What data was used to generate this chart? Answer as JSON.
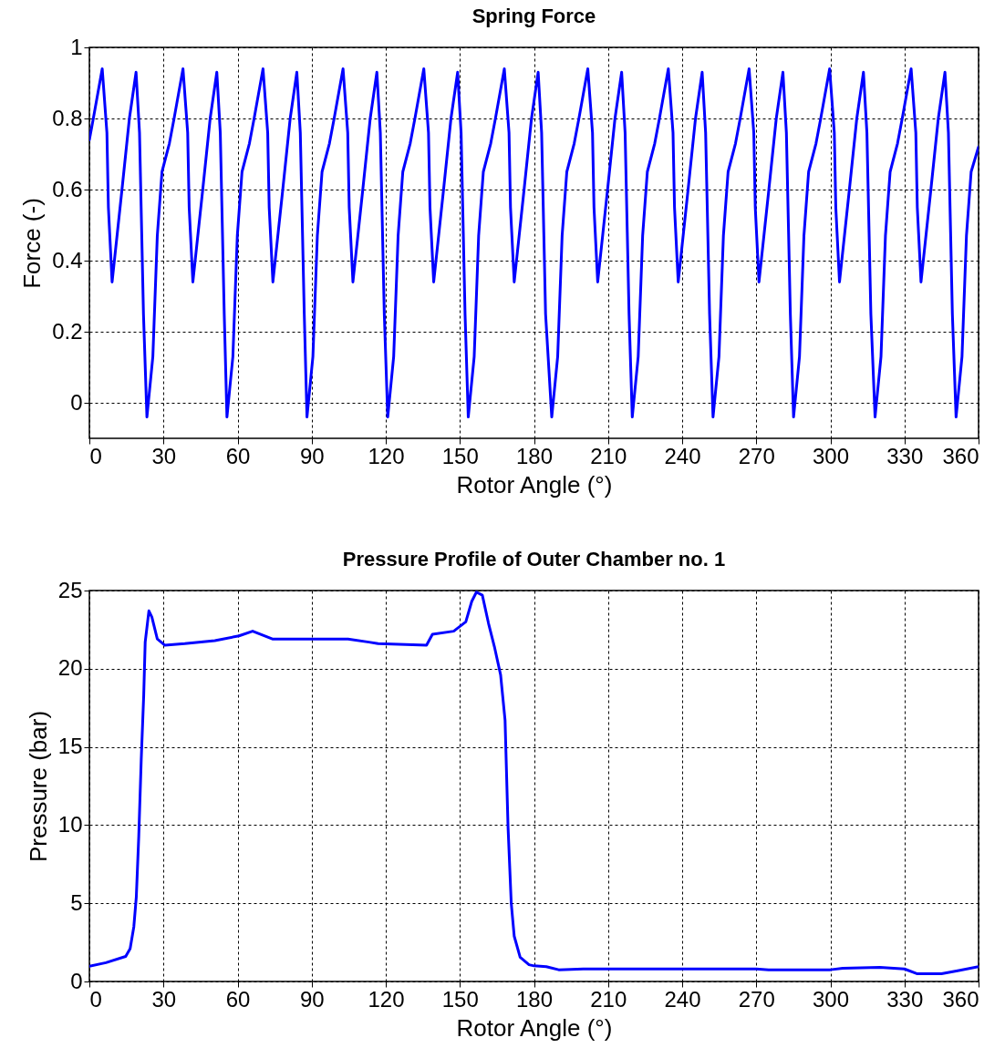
{
  "chart_data": [
    {
      "type": "line",
      "title": "Spring Force",
      "xlabel": "Rotor Angle (°)",
      "ylabel": "Force (-)",
      "xlim": [
        0,
        360
      ],
      "xticks": [
        0,
        30,
        60,
        90,
        120,
        150,
        180,
        210,
        240,
        270,
        300,
        330,
        360
      ],
      "ylim": [
        -0.1,
        1
      ],
      "yticks": [
        0,
        0.2,
        0.4,
        0.6,
        0.8,
        1
      ],
      "grid": true,
      "series": [
        {
          "color": "#0000ff",
          "x": [
            0,
            1.6,
            5.2,
            7.1,
            7.7,
            9.2,
            13.2,
            16.2,
            18.9,
            20.3,
            21.9,
            23.3,
            25.7,
            27.5,
            29.4,
            32.4,
            34.3,
            37.9,
            39.8,
            40.4,
            41.9,
            45.9,
            48.9,
            51.6,
            53.0,
            54.6,
            55.7,
            58.1,
            59.9,
            61.8,
            64.8,
            66.7,
            70.3,
            72.2,
            72.8,
            74.3,
            78.3,
            81.3,
            84.0,
            85.4,
            87.0,
            88.1,
            90.5,
            92.3,
            94.2,
            97.2,
            99.1,
            102.7,
            104.6,
            105.2,
            106.7,
            110.7,
            113.7,
            116.4,
            117.8,
            119.4,
            120.8,
            123.2,
            125.0,
            126.9,
            129.9,
            131.8,
            135.4,
            137.3,
            137.9,
            139.4,
            143.4,
            146.4,
            149.1,
            150.5,
            152.1,
            153.4,
            155.8,
            157.6,
            159.5,
            162.5,
            164.4,
            168.0,
            169.9,
            170.5,
            172.0,
            176.0,
            179.0,
            181.7,
            183.1,
            184.7,
            187.2,
            189.6,
            191.4,
            193.3,
            196.3,
            198.2,
            201.8,
            203.7,
            204.3,
            205.8,
            209.8,
            212.8,
            215.5,
            216.9,
            218.5,
            219.8,
            222.2,
            224.0,
            225.9,
            228.9,
            230.8,
            234.4,
            236.3,
            236.9,
            238.4,
            242.4,
            245.4,
            248.1,
            249.5,
            251.1,
            252.5,
            254.9,
            256.7,
            258.6,
            261.6,
            263.5,
            267.1,
            269.0,
            269.6,
            271.1,
            275.1,
            278.1,
            280.8,
            282.2,
            283.8,
            285.1,
            287.5,
            289.3,
            291.2,
            294.2,
            296.1,
            299.7,
            301.6,
            302.2,
            303.7,
            307.7,
            310.7,
            313.4,
            314.8,
            316.4,
            318.1,
            320.5,
            322.3,
            324.2,
            327.2,
            329.1,
            332.7,
            334.6,
            335.2,
            336.7,
            340.7,
            343.7,
            346.4,
            347.8,
            349.4,
            350.9,
            353.3,
            355.1,
            357.0,
            360
          ],
          "values": [
            0.74,
            0.8,
            0.94,
            0.76,
            0.55,
            0.34,
            0.6,
            0.8,
            0.93,
            0.76,
            0.25,
            -0.04,
            0.13,
            0.47,
            0.65,
            0.73,
            0.8,
            0.94,
            0.76,
            0.55,
            0.34,
            0.6,
            0.8,
            0.93,
            0.76,
            0.25,
            -0.04,
            0.13,
            0.47,
            0.65,
            0.73,
            0.8,
            0.94,
            0.76,
            0.55,
            0.34,
            0.6,
            0.8,
            0.93,
            0.76,
            0.25,
            -0.04,
            0.13,
            0.47,
            0.65,
            0.73,
            0.8,
            0.94,
            0.76,
            0.55,
            0.34,
            0.6,
            0.8,
            0.93,
            0.76,
            0.25,
            -0.04,
            0.13,
            0.47,
            0.65,
            0.73,
            0.8,
            0.94,
            0.76,
            0.55,
            0.34,
            0.6,
            0.8,
            0.93,
            0.76,
            0.25,
            -0.04,
            0.13,
            0.47,
            0.65,
            0.73,
            0.8,
            0.94,
            0.76,
            0.55,
            0.34,
            0.6,
            0.8,
            0.93,
            0.76,
            0.25,
            -0.04,
            0.13,
            0.47,
            0.65,
            0.73,
            0.8,
            0.94,
            0.76,
            0.55,
            0.34,
            0.6,
            0.8,
            0.93,
            0.76,
            0.25,
            -0.04,
            0.13,
            0.47,
            0.65,
            0.73,
            0.8,
            0.94,
            0.76,
            0.55,
            0.34,
            0.6,
            0.8,
            0.93,
            0.76,
            0.25,
            -0.04,
            0.13,
            0.47,
            0.65,
            0.73,
            0.8,
            0.94,
            0.76,
            0.55,
            0.34,
            0.6,
            0.8,
            0.93,
            0.76,
            0.25,
            -0.04,
            0.13,
            0.47,
            0.65,
            0.73,
            0.8,
            0.94,
            0.76,
            0.55,
            0.34,
            0.6,
            0.8,
            0.93,
            0.76,
            0.25,
            -0.04,
            0.13,
            0.47,
            0.65,
            0.73,
            0.8,
            0.94,
            0.76,
            0.55,
            0.34,
            0.6,
            0.8,
            0.93,
            0.76,
            0.25,
            -0.04,
            0.13,
            0.47,
            0.65,
            0.72
          ]
        }
      ]
    },
    {
      "type": "line",
      "title": "Pressure Profile of Outer Chamber no. 1",
      "xlabel": "Rotor Angle (°)",
      "ylabel": "Pressure (bar)",
      "xlim": [
        0,
        360
      ],
      "xticks": [
        0,
        30,
        60,
        90,
        120,
        150,
        180,
        210,
        240,
        270,
        300,
        330,
        360
      ],
      "ylim": [
        0,
        25
      ],
      "yticks": [
        0,
        5,
        10,
        15,
        20,
        25
      ],
      "grid": true,
      "series": [
        {
          "color": "#0000ff",
          "x": [
            0,
            6.7,
            14.7,
            16.5,
            18,
            19,
            20,
            21,
            22,
            22.6,
            24.1,
            25.3,
            27.5,
            30.6,
            38.6,
            50.8,
            60.6,
            66.1,
            74.1,
            104.7,
            113.2,
            116.9,
            136.5,
            138.9,
            147.5,
            152.4,
            154.8,
            156.7,
            159.1,
            161.6,
            164,
            166.5,
            168.3,
            169.5,
            170.8,
            172,
            174.4,
            178,
            180,
            185,
            190,
            200,
            270,
            275,
            300,
            305,
            320,
            330,
            335,
            345,
            352,
            360
          ],
          "values": [
            0.97,
            1.2,
            1.6,
            2.1,
            3.5,
            5.4,
            9.3,
            14.2,
            18.3,
            21.7,
            23.7,
            23.3,
            21.9,
            21.5,
            21.6,
            21.8,
            22.1,
            22.4,
            21.9,
            21.9,
            21.7,
            21.6,
            21.5,
            22.2,
            22.4,
            23,
            24.3,
            24.9,
            24.7,
            22.9,
            21.4,
            19.6,
            16.7,
            9.9,
            5,
            2.9,
            1.55,
            1.07,
            1,
            0.95,
            0.75,
            0.8,
            0.8,
            0.75,
            0.75,
            0.85,
            0.9,
            0.8,
            0.5,
            0.5,
            0.7,
            0.95
          ]
        }
      ]
    }
  ]
}
